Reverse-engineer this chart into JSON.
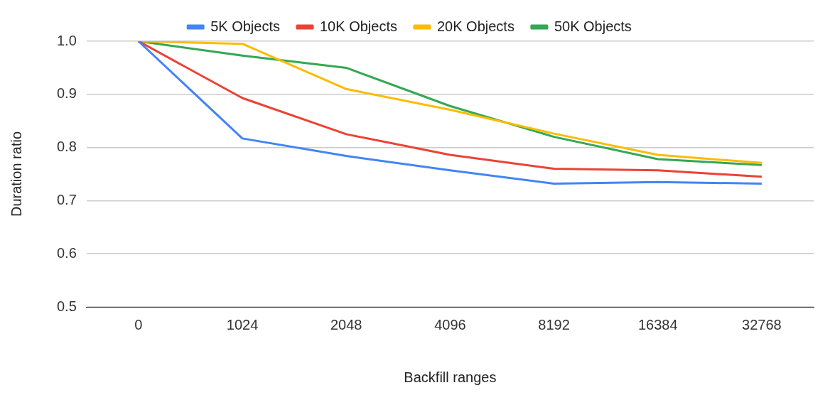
{
  "chart_data": {
    "type": "line",
    "xlabel": "Backfill ranges",
    "ylabel": "Duration ratio",
    "categories": [
      "0",
      "1024",
      "2048",
      "4096",
      "8192",
      "16384",
      "32768"
    ],
    "series": [
      {
        "name": "5K Objects",
        "color": "#4285f4",
        "values": [
          1.0,
          0.817,
          0.784,
          0.757,
          0.732,
          0.735,
          0.732
        ]
      },
      {
        "name": "10K Objects",
        "color": "#ea4335",
        "values": [
          1.0,
          0.893,
          0.825,
          0.786,
          0.76,
          0.757,
          0.745
        ]
      },
      {
        "name": "20K Objects",
        "color": "#fbbc04",
        "values": [
          1.0,
          0.995,
          0.91,
          0.871,
          0.826,
          0.786,
          0.771
        ]
      },
      {
        "name": "50K Objects",
        "color": "#34a853",
        "values": [
          1.0,
          0.973,
          0.95,
          0.878,
          0.82,
          0.778,
          0.767
        ]
      }
    ],
    "ylim": [
      0.5,
      1.0
    ],
    "yticks": [
      {
        "value": 0.5,
        "label": "0.5"
      },
      {
        "value": 0.6,
        "label": "0.6"
      },
      {
        "value": 0.7,
        "label": "0.7"
      },
      {
        "value": 0.8,
        "label": "0.8"
      },
      {
        "value": 0.9,
        "label": "0.9"
      },
      {
        "value": 1.0,
        "label": "1.0"
      }
    ],
    "grid": "y",
    "legend": "top",
    "marker": "none",
    "line_style": "solid"
  }
}
